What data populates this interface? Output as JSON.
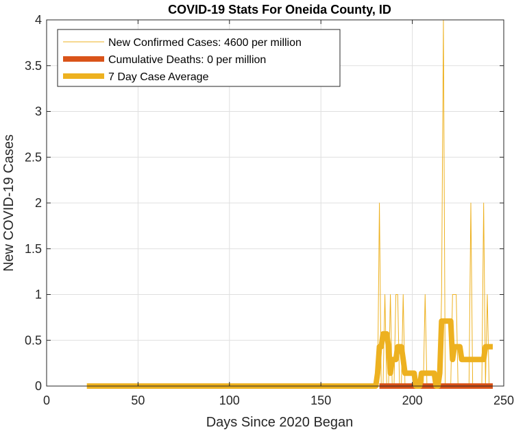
{
  "chart_data": {
    "type": "line",
    "title": "COVID-19 Stats For Oneida County, ID",
    "xlabel": "Days Since 2020 Began",
    "ylabel": "New COVID-19 Cases",
    "xlim": [
      0,
      250
    ],
    "ylim": [
      0,
      4
    ],
    "xticks": [
      0,
      50,
      100,
      150,
      200,
      250
    ],
    "yticks": [
      0,
      0.5,
      1,
      1.5,
      2,
      2.5,
      3,
      3.5,
      4
    ],
    "xtick_labels": [
      "0",
      "50",
      "100",
      "150",
      "200",
      "250"
    ],
    "ytick_labels": [
      "0",
      "0.5",
      "1",
      "1.5",
      "2",
      "2.5",
      "3",
      "3.5",
      "4"
    ],
    "grid": true,
    "legend_position": "top-left",
    "series": [
      {
        "name": "New Confirmed Cases: 4600 per million",
        "color": "#EDB120",
        "x": [
          22,
          180,
          181,
          182,
          183,
          184,
          185,
          186,
          187,
          188,
          189,
          190,
          191,
          192,
          193,
          194,
          195,
          196,
          197,
          198,
          199,
          200,
          201,
          202,
          203,
          204,
          205,
          206,
          207,
          208,
          209,
          210,
          211,
          212,
          213,
          214,
          215,
          216,
          217,
          218,
          219,
          220,
          221,
          222,
          223,
          224,
          225,
          226,
          227,
          228,
          229,
          230,
          231,
          232,
          233,
          234,
          235,
          236,
          237,
          238,
          239,
          240,
          241,
          242,
          243,
          244
        ],
        "y": [
          0,
          0,
          0,
          2,
          0,
          0,
          1,
          0,
          0,
          1,
          0,
          0,
          1,
          1,
          0,
          0,
          1,
          0,
          0,
          0,
          0,
          0,
          0,
          0,
          0,
          0,
          0,
          0,
          1,
          0,
          0,
          0,
          0,
          0,
          0,
          0,
          0,
          1,
          4,
          0,
          0,
          0,
          0,
          1,
          1,
          1,
          0,
          0,
          0,
          0,
          0,
          0,
          0,
          2,
          0,
          0,
          0,
          0,
          0,
          0,
          2,
          0,
          1,
          0,
          0,
          0
        ]
      },
      {
        "name": "Cumulative Deaths: 0 per million",
        "color": "#D95319",
        "x": [
          182,
          244
        ],
        "y": [
          0,
          0
        ]
      },
      {
        "name": "7 Day Case Average",
        "color": "#EDB120",
        "x": [
          22,
          180,
          181,
          182,
          183,
          184,
          185,
          186,
          187,
          188,
          189,
          190,
          191,
          192,
          193,
          194,
          195,
          196,
          197,
          198,
          199,
          200,
          201,
          202,
          203,
          204,
          205,
          206,
          207,
          208,
          209,
          210,
          211,
          212,
          213,
          214,
          215,
          216,
          217,
          218,
          219,
          220,
          221,
          222,
          223,
          224,
          225,
          226,
          227,
          228,
          229,
          230,
          231,
          232,
          233,
          234,
          235,
          236,
          237,
          238,
          239,
          240,
          241,
          242,
          243,
          244
        ],
        "y": [
          0,
          0,
          0.14,
          0.43,
          0.43,
          0.57,
          0.57,
          0.57,
          0.43,
          0.14,
          0.29,
          0.29,
          0.29,
          0.43,
          0.43,
          0.43,
          0.29,
          0.14,
          0.14,
          0.14,
          0.14,
          0.14,
          0.14,
          0,
          0,
          0,
          0.14,
          0.14,
          0.14,
          0.14,
          0.14,
          0.14,
          0.14,
          0.14,
          0,
          0,
          0.14,
          0.71,
          0.71,
          0.71,
          0.71,
          0.71,
          0.71,
          0.29,
          0.43,
          0.43,
          0.43,
          0.43,
          0.29,
          0.29,
          0.29,
          0.29,
          0.29,
          0.29,
          0.29,
          0.29,
          0.29,
          0.29,
          0.29,
          0.29,
          0.29,
          0.43,
          0.43,
          0.43,
          0.43,
          0.43
        ]
      }
    ]
  }
}
